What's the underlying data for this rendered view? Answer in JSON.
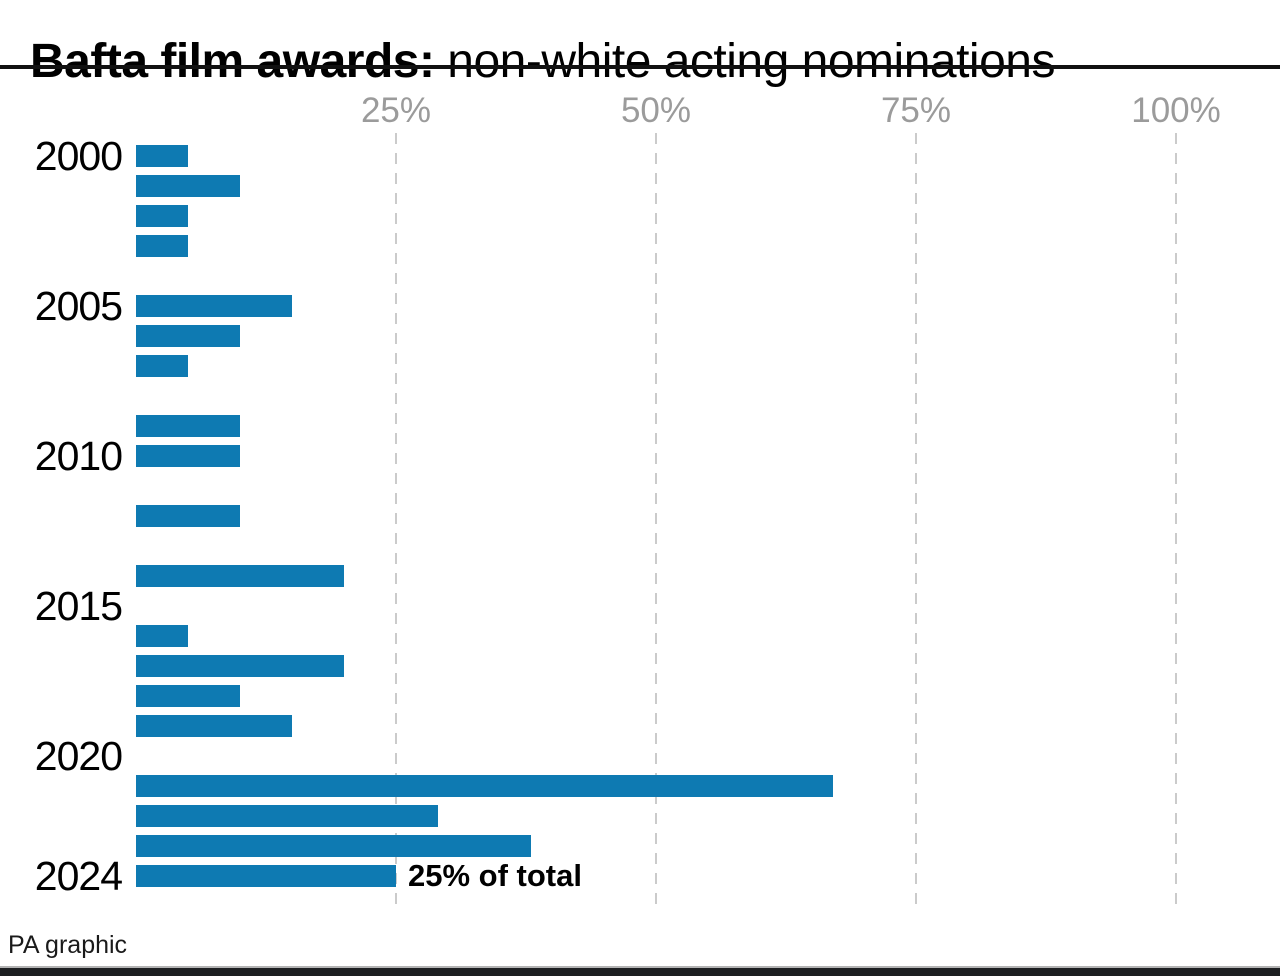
{
  "title": {
    "bold": "Bafta film awards:",
    "regular": " non-white acting nominations"
  },
  "annotation": {
    "text": "25% of total",
    "target_year": 2024
  },
  "source": "PA graphic",
  "colors": {
    "bar": "#0e7ab2",
    "gridline": "#cbcbcb",
    "axis_label": "#9b9b9b",
    "title": "#000000",
    "year_label": "#000000",
    "source_text": "#1a1a1a",
    "footer_strip": "#1d1f21",
    "title_rule": "#111111"
  },
  "chart_data": {
    "type": "bar",
    "orientation": "horizontal",
    "title": "Bafta film awards: non-white acting nominations",
    "unit": "% of total acting nominations",
    "categories": [
      2000,
      2001,
      2002,
      2003,
      2004,
      2005,
      2006,
      2007,
      2008,
      2009,
      2010,
      2011,
      2012,
      2013,
      2014,
      2015,
      2016,
      2017,
      2018,
      2019,
      2020,
      2021,
      2022,
      2023,
      2024
    ],
    "values": [
      5,
      10,
      5,
      5,
      0,
      15,
      10,
      5,
      0,
      10,
      10,
      0,
      10,
      0,
      20,
      0,
      5,
      20,
      10,
      15,
      0,
      67,
      29,
      38,
      25
    ],
    "x_axis": {
      "ticks": [
        25,
        50,
        75,
        100
      ],
      "tick_labels": [
        "25%",
        "50%",
        "75%",
        "100%"
      ],
      "min": 0,
      "max": 110,
      "gridlines": "dashed-vertical"
    },
    "y_axis": {
      "labeled_years": [
        2000,
        2005,
        2010,
        2015,
        2020,
        2024
      ]
    },
    "legend": "none",
    "annotations": [
      {
        "text": "25% of total",
        "year": 2024
      }
    ]
  }
}
